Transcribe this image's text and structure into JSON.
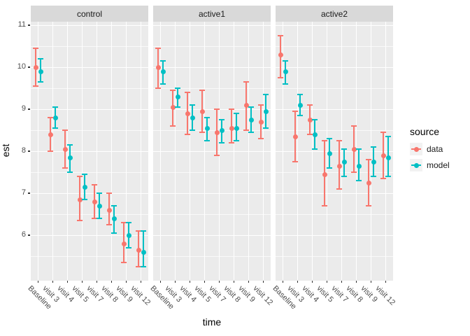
{
  "figure": {
    "y_axis": {
      "label": "est",
      "tick_labels": [
        "11",
        "10",
        "9",
        "8",
        "7",
        "6"
      ]
    },
    "x_axis": {
      "label": "time"
    },
    "legend": {
      "title": "source",
      "items": [
        {
          "label": "data",
          "color": "#F8766D"
        },
        {
          "label": "model",
          "color": "#00BFC4"
        }
      ]
    }
  },
  "chart_data": {
    "type": "pointrange",
    "facets": [
      "control",
      "active1",
      "active2"
    ],
    "categories": [
      "Baseline",
      "visit 3",
      "visit 4",
      "visit 5",
      "visit 7",
      "visit 8",
      "visit 9",
      "visit 12"
    ],
    "xlabel": "time",
    "ylabel": "est",
    "ylim": [
      4.92,
      11.08
    ],
    "y_major_breaks": [
      6,
      7,
      8,
      9,
      10,
      11
    ],
    "y_minor_breaks": [
      5.5,
      6.5,
      7.5,
      8.5,
      9.5,
      10.5
    ],
    "grid": true,
    "legend_position": "right",
    "panel_background": "#EBEBEB",
    "strip_background": "#D9D9D9",
    "gridline_color": "#FFFFFF",
    "dodge": 3.5,
    "series": [
      {
        "name": "data",
        "color": "#F8766D",
        "facets": {
          "control": {
            "est": [
              10.0,
              8.4,
              8.05,
              6.85,
              6.8,
              6.6,
              5.8,
              5.65
            ],
            "lo": [
              9.55,
              8.0,
              7.6,
              6.35,
              6.4,
              6.25,
              5.35,
              5.25
            ],
            "hi": [
              10.45,
              8.8,
              8.5,
              7.4,
              7.2,
              7.0,
              6.3,
              6.1
            ]
          },
          "active1": {
            "est": [
              10.0,
              9.05,
              8.9,
              8.95,
              8.45,
              8.55,
              9.1,
              8.7
            ],
            "lo": [
              9.5,
              8.6,
              8.4,
              8.45,
              7.9,
              8.2,
              8.5,
              8.3
            ],
            "hi": [
              10.45,
              9.45,
              9.4,
              9.45,
              9.0,
              9.0,
              9.65,
              9.1
            ]
          },
          "active2": {
            "est": [
              10.3,
              8.35,
              8.75,
              7.45,
              7.65,
              8.05,
              7.25,
              7.9
            ],
            "lo": [
              9.75,
              7.75,
              8.4,
              6.7,
              7.1,
              7.5,
              6.7,
              7.35
            ],
            "hi": [
              10.75,
              8.95,
              9.1,
              8.25,
              8.25,
              8.6,
              7.8,
              8.45
            ]
          }
        }
      },
      {
        "name": "model",
        "color": "#00BFC4",
        "facets": {
          "control": {
            "est": [
              9.9,
              8.8,
              7.85,
              7.15,
              6.7,
              6.4,
              6.0,
              5.6
            ],
            "lo": [
              9.65,
              8.55,
              7.5,
              6.85,
              6.4,
              6.05,
              5.7,
              5.25
            ],
            "hi": [
              10.2,
              9.05,
              8.15,
              7.45,
              7.0,
              6.7,
              6.3,
              6.1
            ]
          },
          "active1": {
            "est": [
              9.9,
              9.3,
              8.8,
              8.55,
              8.5,
              8.55,
              8.75,
              8.95
            ],
            "lo": [
              9.6,
              9.05,
              8.5,
              8.25,
              8.2,
              8.25,
              8.45,
              8.55
            ],
            "hi": [
              10.15,
              9.5,
              9.1,
              8.8,
              8.75,
              8.9,
              9.05,
              9.35
            ]
          },
          "active2": {
            "est": [
              9.9,
              9.1,
              8.4,
              7.95,
              7.75,
              7.65,
              7.75,
              7.85
            ],
            "lo": [
              9.6,
              8.85,
              8.05,
              7.6,
              7.4,
              7.3,
              7.4,
              7.4
            ],
            "hi": [
              10.15,
              9.35,
              8.75,
              8.3,
              8.05,
              8.05,
              8.1,
              8.35
            ]
          }
        }
      }
    ]
  }
}
